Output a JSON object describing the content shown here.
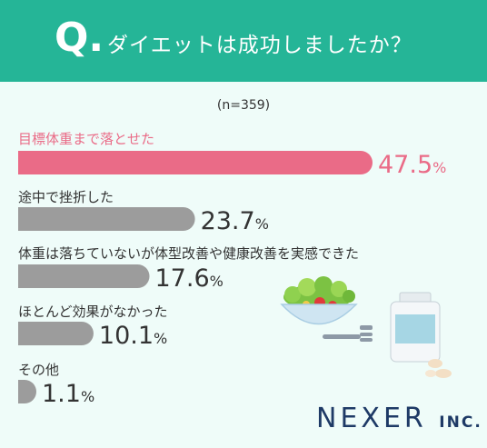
{
  "header": {
    "q_mark": "Q.",
    "question": "ダイエットは成功しましたか？"
  },
  "note": "(n=359)",
  "brand": {
    "name": "NEXER",
    "suffix": "INC."
  },
  "colors": {
    "header": "#25b597",
    "highlight": "#ea6b87",
    "bar": "#9c9c9c",
    "background": "#effcf9"
  },
  "chart_data": {
    "type": "bar",
    "orientation": "horizontal",
    "unit": "%",
    "categories": [
      "目標体重まで落とせた",
      "途中で挫折した",
      "体重は落ちていないが体型改善や健康改善を実感できた",
      "ほとんど効果がなかった",
      "その他"
    ],
    "values": [
      47.5,
      23.7,
      17.6,
      10.1,
      1.1
    ],
    "highlight_index": 0,
    "xlim": [
      0,
      47.5
    ]
  }
}
